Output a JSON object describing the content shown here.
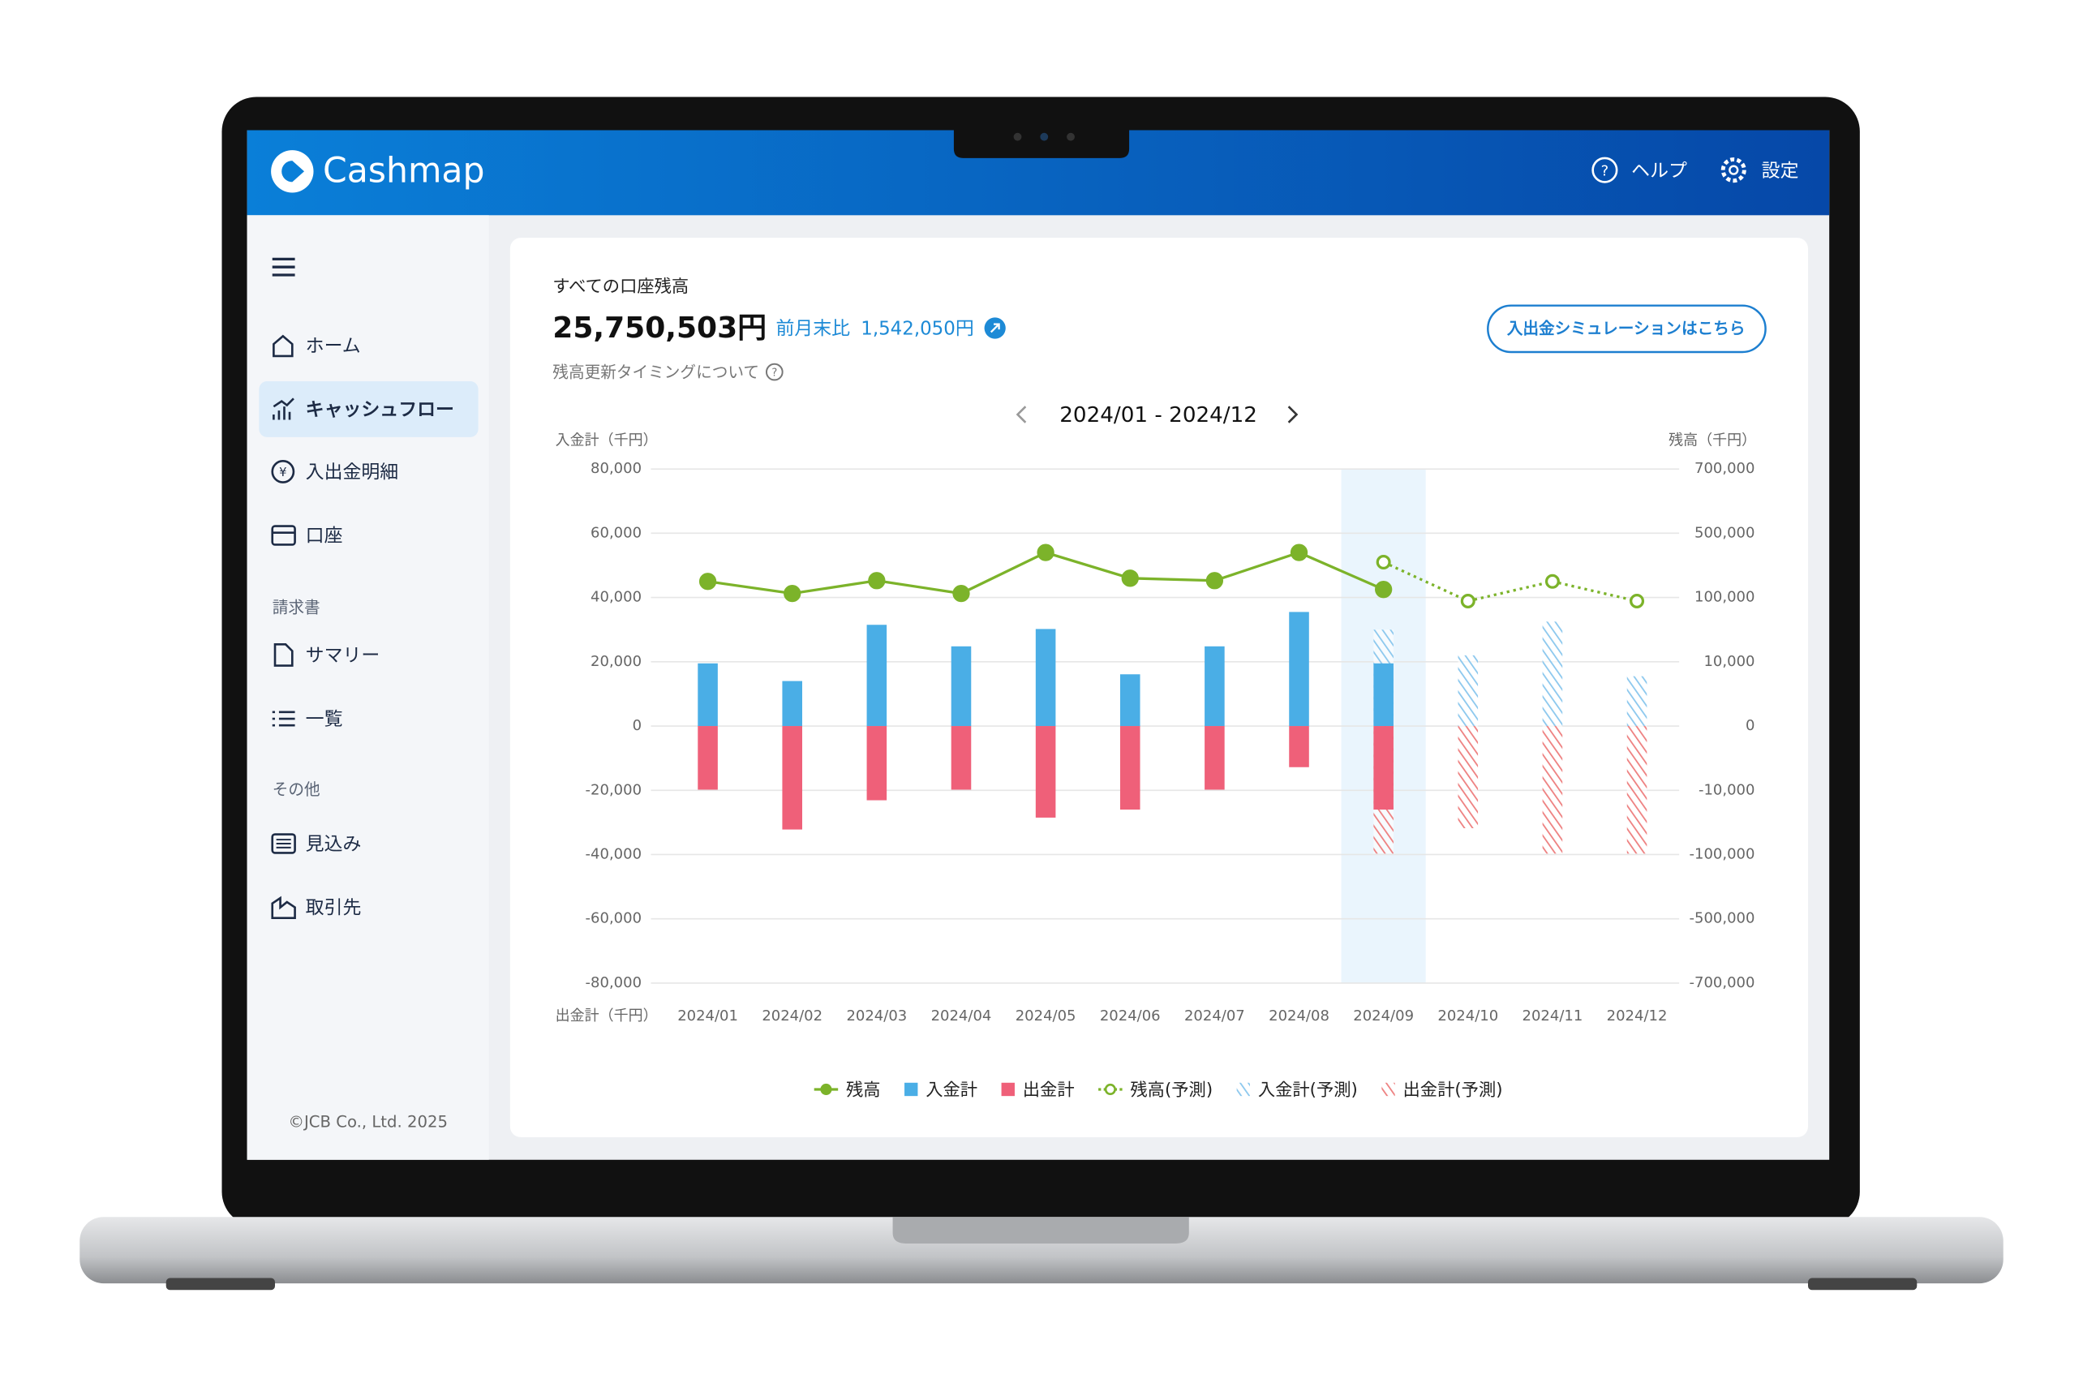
{
  "header": {
    "logo": "Cashmap",
    "help": "ヘルプ",
    "settings": "設定"
  },
  "sidebar": {
    "nav": [
      "ホーム",
      "キャッシュフロー",
      "入出金明細",
      "口座"
    ],
    "invoice": {
      "heading": "請求書",
      "items": [
        "サマリー",
        "一覧"
      ]
    },
    "other": {
      "heading": "その他",
      "items": [
        "見込み",
        "取引先"
      ]
    },
    "copyright": "©JCB Co., Ltd. 2025"
  },
  "summary": {
    "label": "すべての口座残高",
    "total": "25,750,503円",
    "diff_label": "前月末比",
    "diff": "1,542,050円",
    "note": "残高更新タイミングについて",
    "button": "入出金シミュレーションはこちら"
  },
  "chart_data": {
    "type": "combo",
    "period": "2024/01 - 2024/12",
    "y_label_top": "入金計（千円）",
    "y_label_bottom": "出金計（千円）",
    "y2_label": "残高（千円）",
    "categories": [
      "2024/01",
      "2024/02",
      "2024/03",
      "2024/04",
      "2024/05",
      "2024/06",
      "2024/07",
      "2024/08",
      "2024/09",
      "2024/10",
      "2024/11",
      "2024/12"
    ],
    "highlight": "2024/09",
    "ylim": [
      -80000,
      80000
    ],
    "yticks": [
      {
        "value": 80000,
        "label": "80,000"
      },
      {
        "value": 60000,
        "label": "60,000"
      },
      {
        "value": 40000,
        "label": "40,000"
      },
      {
        "value": 20000,
        "label": "20,000"
      },
      0,
      {
        "value": -20000,
        "label": "-20,000"
      },
      {
        "value": -40000,
        "label": "-40,000"
      },
      {
        "value": -60000,
        "label": "-60,000"
      },
      {
        "value": -80000,
        "label": "-80,000"
      }
    ],
    "y2lim": [
      -700000,
      700000
    ],
    "y2ticks": [
      {
        "value": 700000,
        "label": "700,000"
      },
      {
        "value": 500000,
        "label": "500,000"
      },
      {
        "value": 100000,
        "label": "100,000"
      },
      {
        "value": 10000,
        "label": "10,000"
      },
      0,
      {
        "value": -10000,
        "label": "-10,000"
      },
      {
        "value": -100000,
        "label": "-100,000"
      },
      {
        "value": -500000,
        "label": "-500,000"
      },
      {
        "value": -700000,
        "label": "-700,000"
      }
    ],
    "grid": true,
    "series": [
      {
        "name": "残高",
        "type": "line",
        "axis": "y2",
        "color": "#7cb32a",
        "values": [
          200000,
          125000,
          205000,
          125000,
          380000,
          220000,
          205000,
          380000,
          150000,
          null,
          null,
          null
        ]
      },
      {
        "name": "入金計",
        "type": "bar",
        "color": "#4aaee6",
        "values": [
          19500,
          14000,
          31500,
          24800,
          30200,
          16100,
          24800,
          35500,
          19500,
          null,
          null,
          null
        ]
      },
      {
        "name": "出金計",
        "type": "bar",
        "color": "#ef6079",
        "values": [
          -19800,
          -32200,
          -23100,
          -19800,
          -28500,
          -26000,
          -19800,
          -12800,
          -26000,
          null,
          null,
          null
        ]
      },
      {
        "name": "残高(予測)",
        "type": "line",
        "axis": "y2",
        "dashed": true,
        "color": "#7cb32a",
        "values": [
          null,
          null,
          null,
          null,
          null,
          null,
          null,
          null,
          320000,
          95000,
          200000,
          95000
        ]
      },
      {
        "name": "入金計(予測)",
        "type": "bar",
        "hatched": true,
        "color": "#8cc8ee",
        "values": [
          null,
          null,
          null,
          null,
          null,
          null,
          null,
          null,
          30000,
          22000,
          32500,
          15500
        ]
      },
      {
        "name": "出金計(予測)",
        "type": "bar",
        "hatched": true,
        "color": "#ee8080",
        "values": [
          null,
          null,
          null,
          null,
          null,
          null,
          null,
          null,
          -39700,
          -31800,
          -39700,
          -39700
        ]
      }
    ]
  }
}
